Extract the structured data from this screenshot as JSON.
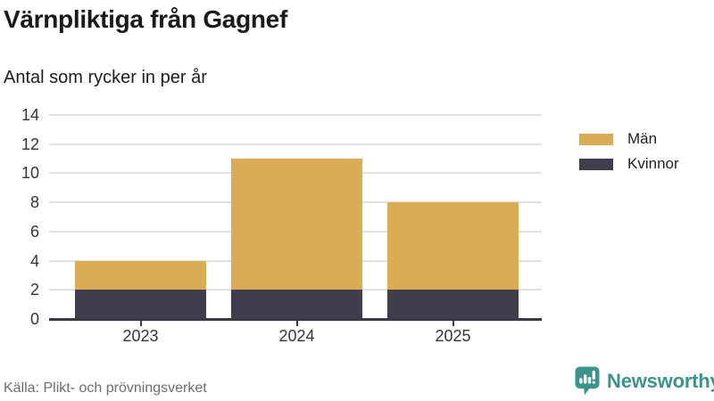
{
  "title": "Värnpliktiga från Gagnef",
  "subtitle": "Antal som rycker in per år",
  "source": "Källa: Plikt- och prövningsverket",
  "brand": {
    "name": "Newsworthy",
    "color": "#3b948b",
    "icon": "bar-chart-speech-bubble-icon"
  },
  "colors": {
    "men": "#d9ac55",
    "women": "#403e4c",
    "gridline": "#e2e2e2",
    "axis": "#3a3946",
    "title_text": "#1a1a1a",
    "muted_text": "#6e6e6e"
  },
  "legend": {
    "items": [
      {
        "label": "Män",
        "color": "#d9ac55"
      },
      {
        "label": "Kvinnor",
        "color": "#403e4c"
      }
    ]
  },
  "chart_data": {
    "type": "bar",
    "stacked": true,
    "title": "Värnpliktiga från Gagnef",
    "subtitle": "Antal som rycker in per år",
    "xlabel": "",
    "ylabel": "",
    "categories": [
      "2023",
      "2024",
      "2025"
    ],
    "series": [
      {
        "name": "Män",
        "color": "#d9ac55",
        "values": [
          2,
          9,
          6
        ]
      },
      {
        "name": "Kvinnor",
        "color": "#403e4c",
        "values": [
          2,
          2,
          2
        ]
      }
    ],
    "totals": [
      4,
      11,
      8
    ],
    "ylim": [
      0,
      14
    ],
    "yticks": [
      0,
      2,
      4,
      6,
      8,
      10,
      12,
      14
    ],
    "grid": true,
    "legend_position": "right-top"
  }
}
